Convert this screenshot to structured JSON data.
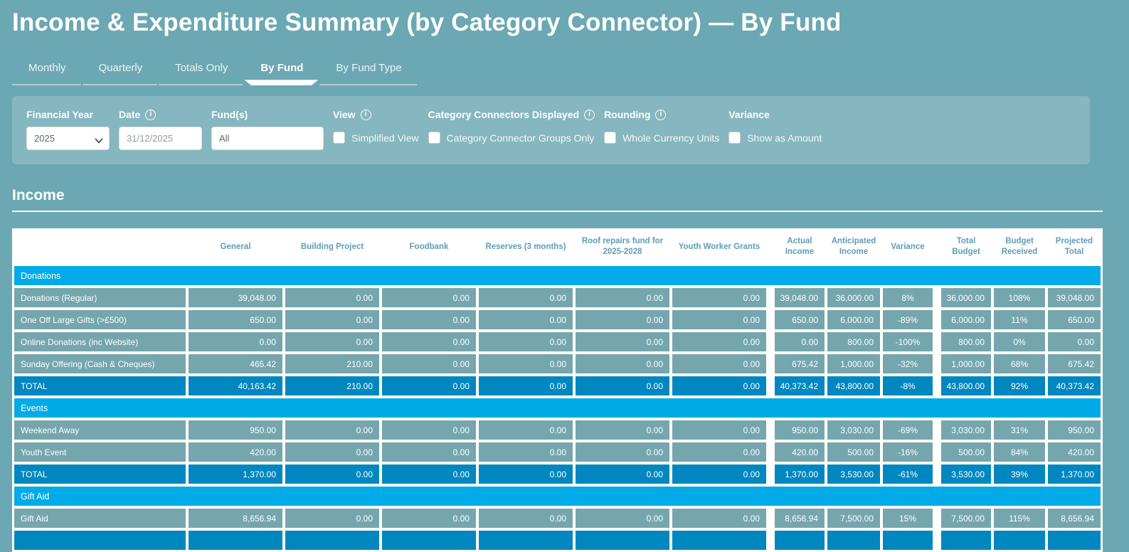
{
  "title": "Income & Expenditure Summary (by Category Connector) — By Fund",
  "tabs": [
    {
      "label": "Monthly",
      "active": false
    },
    {
      "label": "Quarterly",
      "active": false
    },
    {
      "label": "Totals Only",
      "active": false
    },
    {
      "label": "By Fund",
      "active": true
    },
    {
      "label": "By Fund Type",
      "active": false
    }
  ],
  "filters": {
    "financial_year": {
      "label": "Financial Year",
      "value": "2025",
      "has_info": false
    },
    "date": {
      "label": "Date",
      "value": "31/12/2025",
      "has_info": true
    },
    "funds": {
      "label": "Fund(s)",
      "value": "All",
      "has_info": false
    },
    "view": {
      "label": "View",
      "checkbox": "Simplified View",
      "checked": false,
      "has_info": true
    },
    "connectors": {
      "label": "Category Connectors Displayed",
      "checkbox": "Category Connector Groups Only",
      "checked": false,
      "has_info": true
    },
    "rounding": {
      "label": "Rounding",
      "checkbox": "Whole Currency Units",
      "checked": false,
      "has_info": true
    },
    "variance": {
      "label": "Variance",
      "checkbox": "Show as Amount",
      "checked": false,
      "has_info": false
    }
  },
  "section_title": "Income",
  "table": {
    "columns": [
      "General",
      "Building Project",
      "Foodbank",
      "Reserves (3 months)",
      "Roof repairs fund for 2025-2028",
      "Youth Worker Grants",
      "Actual Income",
      "Anticipated Income",
      "Variance",
      "Total Budget",
      "Budget Received",
      "Projected Total"
    ],
    "rows": [
      {
        "type": "group",
        "label": "Donations"
      },
      {
        "type": "data",
        "label": "Donations (Regular)",
        "values": [
          "39,048.00",
          "0.00",
          "0.00",
          "0.00",
          "0.00",
          "0.00",
          "39,048.00",
          "36,000.00",
          "8%",
          "36,000.00",
          "108%",
          "39,048.00"
        ]
      },
      {
        "type": "data",
        "label": "One Off Large Gifts (>£500)",
        "values": [
          "650.00",
          "0.00",
          "0.00",
          "0.00",
          "0.00",
          "0.00",
          "650.00",
          "6,000.00",
          "-89%",
          "6,000.00",
          "11%",
          "650.00"
        ]
      },
      {
        "type": "data",
        "label": "Online Donations (inc Website)",
        "values": [
          "0.00",
          "0.00",
          "0.00",
          "0.00",
          "0.00",
          "0.00",
          "0.00",
          "800.00",
          "-100%",
          "800.00",
          "0%",
          "0.00"
        ]
      },
      {
        "type": "data",
        "label": "Sunday Offering (Cash & Cheques)",
        "values": [
          "465.42",
          "210.00",
          "0.00",
          "0.00",
          "0.00",
          "0.00",
          "675.42",
          "1,000.00",
          "-32%",
          "1,000.00",
          "68%",
          "675.42"
        ]
      },
      {
        "type": "total",
        "label": "TOTAL",
        "values": [
          "40,163.42",
          "210.00",
          "0.00",
          "0.00",
          "0.00",
          "0.00",
          "40,373.42",
          "43,800.00",
          "-8%",
          "43,800.00",
          "92%",
          "40,373.42"
        ]
      },
      {
        "type": "group",
        "label": "Events"
      },
      {
        "type": "data",
        "label": "Weekend Away",
        "values": [
          "950.00",
          "0.00",
          "0.00",
          "0.00",
          "0.00",
          "0.00",
          "950.00",
          "3,030.00",
          "-69%",
          "3,030.00",
          "31%",
          "950.00"
        ]
      },
      {
        "type": "data",
        "label": "Youth Event",
        "values": [
          "420.00",
          "0.00",
          "0.00",
          "0.00",
          "0.00",
          "0.00",
          "420.00",
          "500.00",
          "-16%",
          "500.00",
          "84%",
          "420.00"
        ]
      },
      {
        "type": "total",
        "label": "TOTAL",
        "values": [
          "1,370.00",
          "0.00",
          "0.00",
          "0.00",
          "0.00",
          "0.00",
          "1,370.00",
          "3,530.00",
          "-61%",
          "3,530.00",
          "39%",
          "1,370.00"
        ]
      },
      {
        "type": "group",
        "label": "Gift Aid"
      },
      {
        "type": "data",
        "label": "Gift Aid",
        "values": [
          "8,656.94",
          "0.00",
          "0.00",
          "0.00",
          "0.00",
          "0.00",
          "8,656.94",
          "7,500.00",
          "15%",
          "7,500.00",
          "115%",
          "8,656.94"
        ]
      },
      {
        "type": "total",
        "label": "",
        "values": [
          "",
          "",
          "",
          "",
          "",
          "",
          "",
          "",
          "",
          "",
          "",
          ""
        ]
      }
    ]
  },
  "colors": {
    "page_bg": "#6ba8b3",
    "panel_bg": "#86b6bf",
    "group_row": "#00abe8",
    "data_row": "#75a6ae",
    "total_row": "#0087bf",
    "header_text": "#5f9cb5"
  }
}
